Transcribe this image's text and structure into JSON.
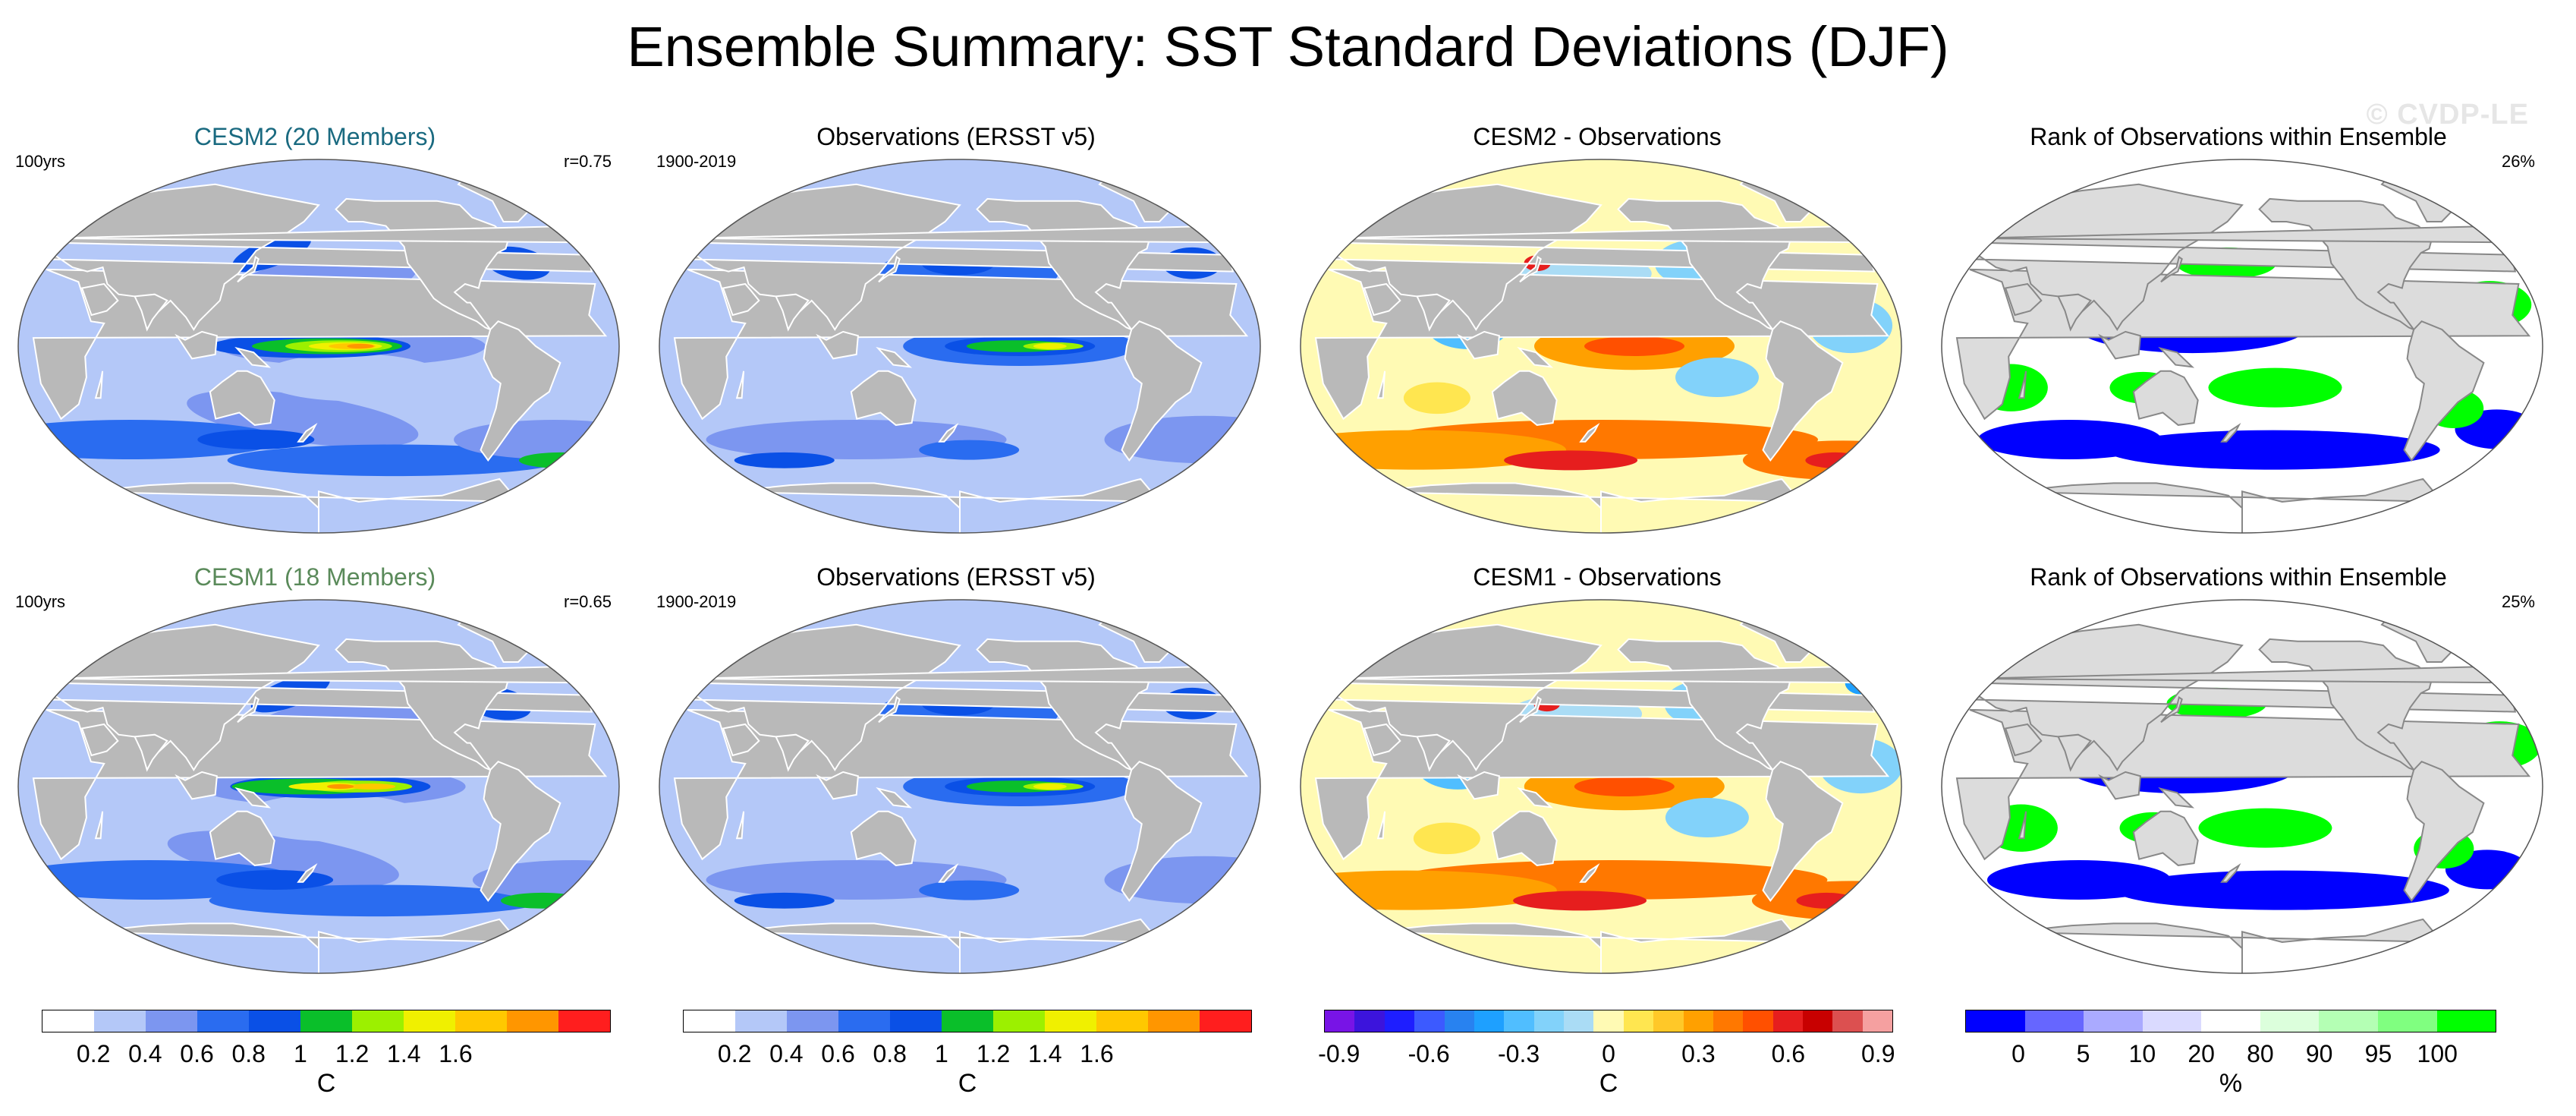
{
  "title": "Ensemble Summary: SST Standard Deviations (DJF)",
  "watermark": "© CVDP-LE",
  "panels": [
    {
      "title": "CESM2 (20 Members)",
      "left": "100yrs",
      "right": "r=0.75",
      "kind": "std",
      "title_color": "#1a6a80",
      "variant": 0
    },
    {
      "title": "Observations (ERSST v5)",
      "left": "1900-2019",
      "right": "",
      "kind": "obs",
      "title_color": "#000000",
      "variant": 1
    },
    {
      "title": "CESM2 - Observations",
      "left": "",
      "right": "",
      "kind": "diff",
      "title_color": "#000000",
      "variant": 0
    },
    {
      "title": "Rank of Observations within Ensemble",
      "left": "",
      "right": "26%",
      "kind": "rank",
      "title_color": "#000000",
      "variant": 0
    },
    {
      "title": "CESM1 (18 Members)",
      "left": "100yrs",
      "right": "r=0.65",
      "kind": "std",
      "title_color": "#5a8a5a",
      "variant": 2
    },
    {
      "title": "Observations (ERSST v5)",
      "left": "1900-2019",
      "right": "",
      "kind": "obs",
      "title_color": "#000000",
      "variant": 1
    },
    {
      "title": "CESM1 - Observations",
      "left": "",
      "right": "",
      "kind": "diff",
      "title_color": "#000000",
      "variant": 1
    },
    {
      "title": "Rank of Observations within Ensemble",
      "left": "",
      "right": "25%",
      "kind": "rank",
      "title_color": "#000000",
      "variant": 1
    }
  ],
  "colorbars": [
    {
      "name": "std-colorbar-1",
      "unit": "C",
      "colors": [
        "#ffffff",
        "#b4c8f8",
        "#7c96f0",
        "#2a6cf0",
        "#0a50e6",
        "#0abf2a",
        "#9cf000",
        "#f0f000",
        "#ffc800",
        "#ff9600",
        "#ff1e1e"
      ],
      "ticks": [
        "0.2",
        "0.4",
        "0.6",
        "0.8",
        "1",
        "1.2",
        "1.4",
        "1.6"
      ]
    },
    {
      "name": "std-colorbar-2",
      "unit": "C",
      "colors": [
        "#ffffff",
        "#b4c8f8",
        "#7c96f0",
        "#2a6cf0",
        "#0a50e6",
        "#0abf2a",
        "#9cf000",
        "#f0f000",
        "#ffc800",
        "#ff9600",
        "#ff1e1e"
      ],
      "ticks": [
        "0.2",
        "0.4",
        "0.6",
        "0.8",
        "1",
        "1.2",
        "1.4",
        "1.6"
      ]
    },
    {
      "name": "diff-colorbar",
      "unit": "C",
      "colors": [
        "#7814e6",
        "#3c14dc",
        "#1e1eff",
        "#3c5aff",
        "#2882f0",
        "#1ea0ff",
        "#50beff",
        "#82d2fa",
        "#aadcf5",
        "#fffab4",
        "#ffe650",
        "#ffc828",
        "#ffa000",
        "#ff7800",
        "#ff5000",
        "#e61e1e",
        "#c80000",
        "#dc5050",
        "#f5a0a0"
      ],
      "ticks": [
        "-0.9",
        "-0.6",
        "-0.3",
        "0",
        "0.3",
        "0.6",
        "0.9"
      ]
    },
    {
      "name": "rank-colorbar",
      "unit": "%",
      "colors": [
        "#0000ff",
        "#6666ff",
        "#aaaaff",
        "#dadaff",
        "#ffffff",
        "#dcffdc",
        "#b4ffb4",
        "#80ff80",
        "#00ff00"
      ],
      "ticks": [
        "0",
        "5",
        "10",
        "20",
        "80",
        "90",
        "95",
        "100"
      ]
    }
  ]
}
